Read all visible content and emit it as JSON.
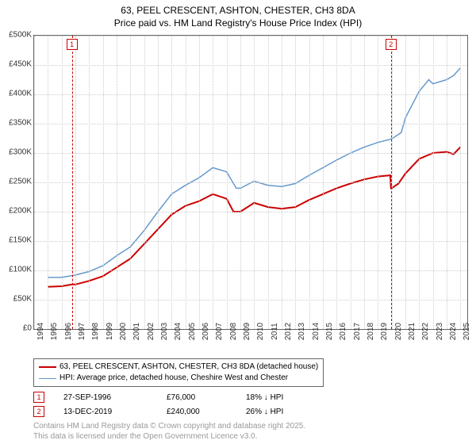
{
  "title_line1": "63, PEEL CRESCENT, ASHTON, CHESTER, CH3 8DA",
  "title_line2": "Price paid vs. HM Land Registry's House Price Index (HPI)",
  "chart": {
    "type": "line",
    "background_color": "#ffffff",
    "border_color": "#666666",
    "grid_color": "#cccccc",
    "text_color": "#333333",
    "x": {
      "min": 1994,
      "max": 2025.5,
      "ticks": [
        1994,
        1995,
        1996,
        1997,
        1998,
        1999,
        2000,
        2001,
        2002,
        2003,
        2004,
        2005,
        2006,
        2007,
        2008,
        2009,
        2010,
        2011,
        2012,
        2013,
        2014,
        2015,
        2016,
        2017,
        2018,
        2019,
        2020,
        2021,
        2022,
        2023,
        2024,
        2025
      ]
    },
    "y": {
      "min": 0,
      "max": 500000,
      "step": 50000,
      "labels": [
        "£0",
        "£50K",
        "£100K",
        "£150K",
        "£200K",
        "£250K",
        "£300K",
        "£350K",
        "£400K",
        "£450K",
        "£500K"
      ]
    },
    "series_property": {
      "label": "63, PEEL CRESCENT, ASHTON, CHESTER, CH3 8DA (detached house)",
      "color": "#cc0000",
      "line_width": 2,
      "points": [
        [
          1995,
          72000
        ],
        [
          1996,
          73000
        ],
        [
          1996.75,
          76000
        ],
        [
          1997,
          76000
        ],
        [
          1998,
          82000
        ],
        [
          1999,
          90000
        ],
        [
          2000,
          105000
        ],
        [
          2001,
          120000
        ],
        [
          2002,
          145000
        ],
        [
          2003,
          170000
        ],
        [
          2004,
          195000
        ],
        [
          2005,
          210000
        ],
        [
          2006,
          218000
        ],
        [
          2007,
          230000
        ],
        [
          2008,
          222000
        ],
        [
          2008.5,
          200000
        ],
        [
          2009,
          200000
        ],
        [
          2010,
          215000
        ],
        [
          2011,
          208000
        ],
        [
          2012,
          205000
        ],
        [
          2013,
          208000
        ],
        [
          2014,
          220000
        ],
        [
          2015,
          230000
        ],
        [
          2016,
          240000
        ],
        [
          2017,
          248000
        ],
        [
          2018,
          255000
        ],
        [
          2019,
          260000
        ],
        [
          2019.9,
          262000
        ],
        [
          2019.95,
          240000
        ],
        [
          2020,
          240000
        ],
        [
          2020.5,
          248000
        ],
        [
          2021,
          265000
        ],
        [
          2022,
          290000
        ],
        [
          2023,
          300000
        ],
        [
          2024,
          302000
        ],
        [
          2024.5,
          298000
        ],
        [
          2025,
          310000
        ]
      ]
    },
    "series_hpi": {
      "label": "HPI: Average price, detached house, Cheshire West and Chester",
      "color": "#6699cc",
      "line_width": 1.5,
      "points": [
        [
          1995,
          88000
        ],
        [
          1996,
          88000
        ],
        [
          1997,
          92000
        ],
        [
          1998,
          98000
        ],
        [
          1999,
          108000
        ],
        [
          2000,
          125000
        ],
        [
          2001,
          140000
        ],
        [
          2002,
          168000
        ],
        [
          2003,
          200000
        ],
        [
          2004,
          230000
        ],
        [
          2005,
          245000
        ],
        [
          2006,
          258000
        ],
        [
          2007,
          275000
        ],
        [
          2008,
          268000
        ],
        [
          2008.7,
          240000
        ],
        [
          2009,
          240000
        ],
        [
          2010,
          252000
        ],
        [
          2011,
          245000
        ],
        [
          2012,
          243000
        ],
        [
          2013,
          248000
        ],
        [
          2014,
          262000
        ],
        [
          2015,
          275000
        ],
        [
          2016,
          288000
        ],
        [
          2017,
          300000
        ],
        [
          2018,
          310000
        ],
        [
          2019,
          318000
        ],
        [
          2020,
          324000
        ],
        [
          2020.7,
          335000
        ],
        [
          2021,
          360000
        ],
        [
          2022,
          405000
        ],
        [
          2022.7,
          425000
        ],
        [
          2023,
          418000
        ],
        [
          2024,
          425000
        ],
        [
          2024.5,
          432000
        ],
        [
          2025,
          445000
        ]
      ]
    },
    "markers": [
      {
        "id": "1",
        "x": 1996.75
      },
      {
        "id": "2",
        "x": 2019.95
      }
    ],
    "marker_color": "#cc0000"
  },
  "legend": {
    "border_color": "#666666"
  },
  "sales": [
    {
      "id": "1",
      "date": "27-SEP-1996",
      "price": "£76,000",
      "pct": "18% ↓ HPI"
    },
    {
      "id": "2",
      "date": "13-DEC-2019",
      "price": "£240,000",
      "pct": "26% ↓ HPI"
    }
  ],
  "footnote_line1": "Contains HM Land Registry data © Crown copyright and database right 2025.",
  "footnote_line2": "This data is licensed under the Open Government Licence v3.0."
}
